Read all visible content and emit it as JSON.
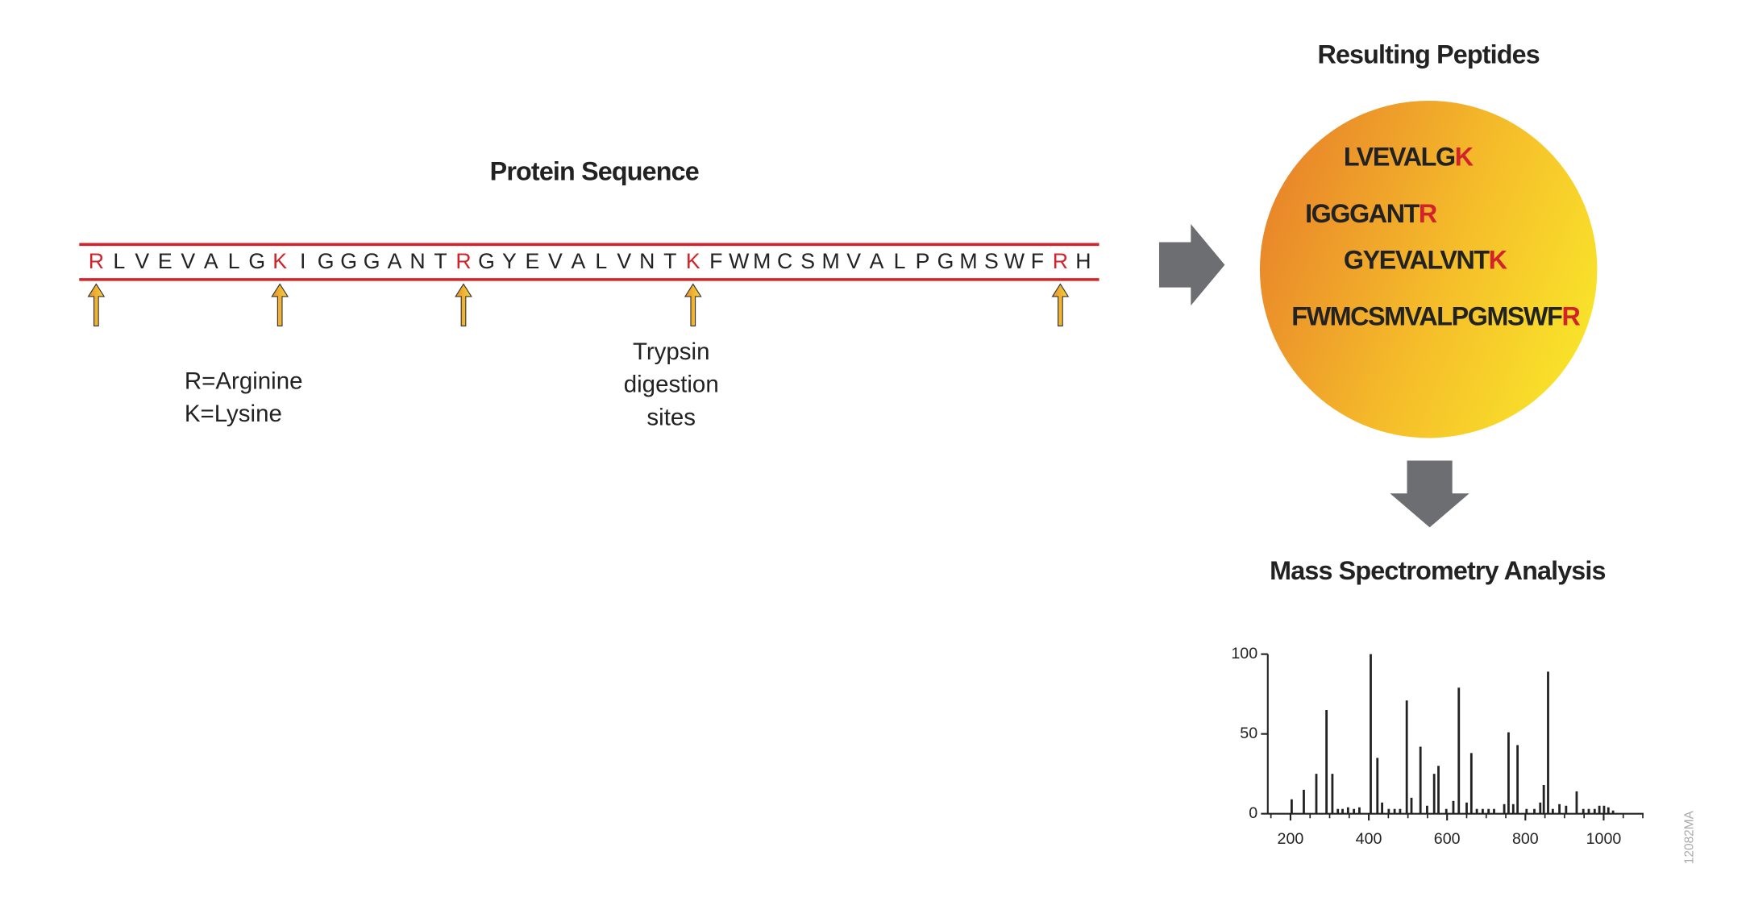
{
  "protein": {
    "title": "Protein Sequence",
    "segments": [
      {
        "text": "R",
        "site": true
      },
      {
        "text": "LVEVALG",
        "site": false
      },
      {
        "text": "K",
        "site": true
      },
      {
        "text": "IGGGANT",
        "site": false
      },
      {
        "text": "R",
        "site": true
      },
      {
        "text": "GYEVALVNT",
        "site": false
      },
      {
        "text": "K",
        "site": true
      },
      {
        "text": "FWMCSMVALPGMSWF",
        "site": false
      },
      {
        "text": "R",
        "site": true
      },
      {
        "text": "H",
        "site": false
      }
    ],
    "legend": [
      "R=Arginine",
      "K=Lysine"
    ],
    "site_label": [
      "Trypsin",
      "digestion",
      "sites"
    ]
  },
  "peptides": {
    "title": "Resulting Peptides",
    "items": [
      {
        "body": "LVEVALG",
        "end": "K"
      },
      {
        "body": "IGGGANT",
        "end": "R"
      },
      {
        "body": "GYEVALVNT",
        "end": "K"
      },
      {
        "body": "FWMCSMVALPGMSWF",
        "end": "R"
      }
    ]
  },
  "chart_data": {
    "type": "bar",
    "title": "Mass Spectrometry Analysis",
    "color": "#222222",
    "x": [
      203,
      234,
      266,
      292,
      307,
      321,
      333,
      347,
      362,
      376,
      405,
      422,
      434,
      451,
      466,
      480,
      497,
      509,
      532,
      549,
      567,
      578,
      598,
      616,
      630,
      650,
      662,
      676,
      691,
      706,
      720,
      746,
      757,
      769,
      780,
      803,
      823,
      838,
      847,
      858,
      870,
      887,
      904,
      931,
      948,
      962,
      977,
      989,
      1001,
      1012,
      1024
    ],
    "values": [
      9,
      15,
      25,
      65,
      25,
      3,
      3,
      4,
      3,
      4,
      100,
      35,
      7,
      3,
      3,
      3,
      71,
      10,
      42,
      5,
      25,
      30,
      3,
      8,
      79,
      7,
      38,
      3,
      3,
      3,
      3,
      6,
      51,
      6,
      43,
      3,
      3,
      7,
      18,
      89,
      3,
      6,
      5,
      14,
      3,
      3,
      3,
      5,
      5,
      4,
      2
    ],
    "xlim": [
      142,
      1102
    ],
    "ylim": [
      0,
      100
    ],
    "xticks": [
      200,
      400,
      600,
      800,
      1000
    ],
    "yticks": [
      0,
      50,
      100
    ],
    "xminorticks": [
      150,
      250,
      300,
      350,
      450,
      500,
      550,
      650,
      700,
      750,
      850,
      900,
      950,
      1050,
      1100
    ]
  },
  "figure_code": "12082MA"
}
